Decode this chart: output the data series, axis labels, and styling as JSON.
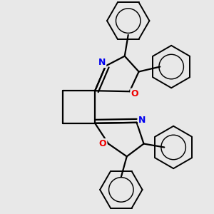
{
  "background_color": "#e8e8e8",
  "bond_color": "#000000",
  "N_color": "#0000ee",
  "O_color": "#ee0000",
  "line_width": 1.6,
  "fig_width": 3.0,
  "fig_height": 3.0,
  "dpi": 100,
  "xlim": [
    -1.4,
    1.6
  ],
  "ylim": [
    -1.5,
    1.5
  ]
}
